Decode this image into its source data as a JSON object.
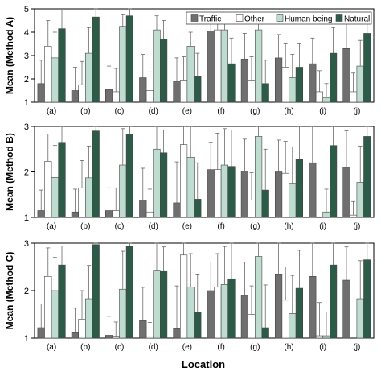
{
  "figure": {
    "xlabel": "Location",
    "legend_labels": [
      "Traffic",
      "Other",
      "Human being",
      "Natural"
    ]
  },
  "series_colors": {
    "Traffic": "#6f6f6f",
    "Other": "#ffffff",
    "Human being": "#bedcd0",
    "Natural": "#2c5b48"
  },
  "chart_data": [
    {
      "type": "bar",
      "ylabel": "Mean (Method A)",
      "xlabel": "",
      "ylim": [
        1,
        5
      ],
      "yticks": [
        1,
        2,
        3,
        4,
        5
      ],
      "grid": false,
      "legend": "top-right",
      "categories": [
        "(a)",
        "(b)",
        "(c)",
        "(d)",
        "(e)",
        "(f)",
        "(g)",
        "(h)",
        "(i)",
        "(j)"
      ],
      "series": [
        {
          "name": "Traffic",
          "values": [
            1.8,
            1.5,
            1.55,
            2.05,
            1.9,
            4.05,
            2.85,
            2.9,
            2.65,
            3.3
          ],
          "errors": [
            1.0,
            1.0,
            1.0,
            1.0,
            1.0,
            0.5,
            1.1,
            1.0,
            1.1,
            1.1
          ]
        },
        {
          "name": "Other",
          "values": [
            3.4,
            1.75,
            1.45,
            1.5,
            1.95,
            4.1,
            1.95,
            2.5,
            1.45,
            1.45
          ],
          "errors": [
            1.1,
            1.0,
            1.0,
            0.8,
            1.0,
            0.5,
            1.0,
            1.0,
            0.9,
            0.8
          ]
        },
        {
          "name": "Human being",
          "values": [
            2.9,
            3.1,
            4.25,
            4.1,
            3.4,
            4.1,
            4.1,
            2.05,
            1.2,
            2.55
          ],
          "errors": [
            1.1,
            1.1,
            0.5,
            0.6,
            0.6,
            0.5,
            0.6,
            1.0,
            0.6,
            1.1
          ]
        },
        {
          "name": "Natural",
          "values": [
            4.15,
            4.65,
            4.7,
            3.7,
            2.1,
            2.65,
            1.8,
            2.5,
            3.1,
            3.95
          ],
          "errors": [
            0.8,
            0.4,
            0.4,
            0.8,
            1.0,
            1.1,
            1.0,
            1.0,
            1.1,
            0.9
          ]
        }
      ]
    },
    {
      "type": "bar",
      "ylabel": "Mean (Method B)",
      "xlabel": "",
      "ylim": [
        1,
        3
      ],
      "yticks": [
        1,
        2,
        3
      ],
      "grid": false,
      "categories": [
        "(a)",
        "(b)",
        "(c)",
        "(d)",
        "(e)",
        "(f)",
        "(g)",
        "(h)",
        "(i)",
        "(j)"
      ],
      "series": [
        {
          "name": "Traffic",
          "values": [
            1.15,
            1.12,
            1.15,
            1.38,
            1.32,
            2.05,
            2.02,
            2.0,
            2.2,
            2.1
          ],
          "errors": [
            0.45,
            0.5,
            0.5,
            0.7,
            0.9,
            0.6,
            0.7,
            0.7,
            0.8,
            0.8
          ]
        },
        {
          "name": "Other",
          "values": [
            2.23,
            1.65,
            1.15,
            1.12,
            2.6,
            2.05,
            1.38,
            1.97,
            1.0,
            1.05
          ],
          "errors": [
            0.6,
            0.6,
            0.5,
            0.5,
            0.4,
            0.8,
            0.6,
            0.7,
            0.0,
            0.3
          ]
        },
        {
          "name": "Human being",
          "values": [
            1.88,
            1.87,
            2.15,
            2.5,
            2.32,
            2.15,
            2.78,
            1.75,
            1.12,
            1.77
          ],
          "errors": [
            0.7,
            0.7,
            0.8,
            0.6,
            0.7,
            0.8,
            0.4,
            0.8,
            0.5,
            0.8
          ]
        },
        {
          "name": "Natural",
          "values": [
            2.65,
            2.9,
            2.82,
            2.42,
            1.4,
            2.12,
            1.6,
            2.27,
            2.58,
            2.78
          ],
          "errors": [
            0.4,
            0.2,
            0.3,
            0.5,
            0.8,
            0.8,
            0.9,
            0.8,
            0.6,
            0.4
          ]
        }
      ]
    },
    {
      "type": "bar",
      "ylabel": "Mean (Method C)",
      "xlabel": "Location",
      "ylim": [
        1,
        3
      ],
      "yticks": [
        1,
        2,
        3
      ],
      "grid": false,
      "categories": [
        "(a)",
        "(b)",
        "(c)",
        "(d)",
        "(e)",
        "(f)",
        "(g)",
        "(h)",
        "(i)",
        "(j)"
      ],
      "series": [
        {
          "name": "Traffic",
          "values": [
            1.22,
            1.13,
            1.06,
            1.37,
            1.2,
            2.0,
            1.9,
            2.35,
            2.3,
            2.22
          ],
          "errors": [
            0.5,
            0.5,
            0.4,
            0.7,
            0.9,
            0.6,
            0.7,
            0.7,
            0.8,
            0.7
          ]
        },
        {
          "name": "Other",
          "values": [
            2.3,
            1.4,
            1.04,
            1.03,
            2.75,
            2.08,
            1.5,
            1.8,
            1.05,
            1.0
          ],
          "errors": [
            0.6,
            0.6,
            0.3,
            0.3,
            0.5,
            0.7,
            0.6,
            0.7,
            0.7,
            0.0
          ]
        },
        {
          "name": "Human being",
          "values": [
            2.0,
            1.83,
            2.03,
            2.43,
            2.08,
            2.13,
            2.72,
            1.52,
            1.05,
            1.83
          ],
          "errors": [
            0.7,
            0.7,
            0.8,
            0.6,
            0.7,
            0.8,
            0.4,
            0.8,
            0.5,
            0.8
          ]
        },
        {
          "name": "Natural",
          "values": [
            2.54,
            2.97,
            2.93,
            2.42,
            1.55,
            2.25,
            1.22,
            2.05,
            2.54,
            2.65
          ],
          "errors": [
            0.4,
            0.05,
            0.1,
            0.5,
            0.8,
            0.8,
            0.9,
            0.8,
            0.5,
            0.4
          ]
        }
      ]
    }
  ]
}
